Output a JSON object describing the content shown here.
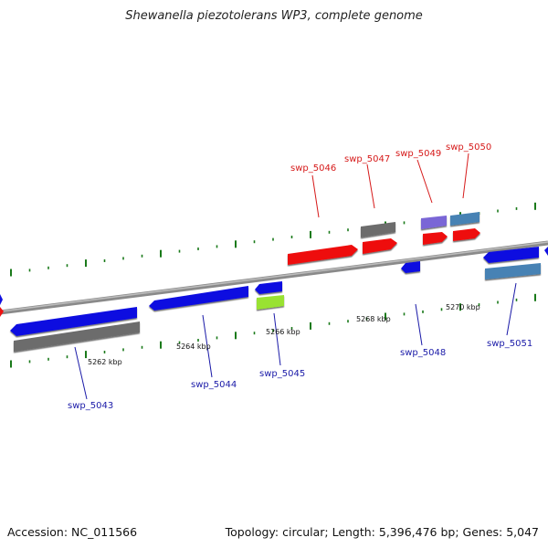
{
  "title": "Shewanella piezotolerans WP3, complete genome",
  "footer": {
    "accession": "Accession: NC_011566",
    "summary": "Topology: circular; Length: 5,396,476 bp; Genes: 5,047"
  },
  "colors": {
    "blue": "#1010e0",
    "red": "#ee1111",
    "gray": "#6c6c6c",
    "lime": "#99e233",
    "purple": "#7a66d6",
    "steel": "#4682b4",
    "tick_green": "#1a7a1a",
    "label_blue": "#1a1aa8",
    "label_red": "#d61a1a"
  },
  "ticks": [
    {
      "label": "5262 kbp"
    },
    {
      "label": "5264 kbp"
    },
    {
      "label": "5266 kbp"
    },
    {
      "label": "5268 kbp"
    },
    {
      "label": "5270 kbp"
    }
  ],
  "genes": [
    {
      "name": "swp_5043",
      "strand": "reverse",
      "color": "blue"
    },
    {
      "name": "swp_5044",
      "strand": "reverse",
      "color": "blue"
    },
    {
      "name": "swp_5045",
      "strand": "reverse",
      "color": "lime"
    },
    {
      "name": "swp_5046",
      "strand": "forward",
      "color": "red"
    },
    {
      "name": "swp_5047",
      "strand": "forward",
      "color": "red"
    },
    {
      "name": "swp_5048",
      "strand": "reverse",
      "color": "blue"
    },
    {
      "name": "swp_5049",
      "strand": "forward",
      "color": "red"
    },
    {
      "name": "swp_5050",
      "strand": "forward",
      "color": "red"
    },
    {
      "name": "swp_5051",
      "strand": "reverse",
      "color": "blue"
    }
  ]
}
